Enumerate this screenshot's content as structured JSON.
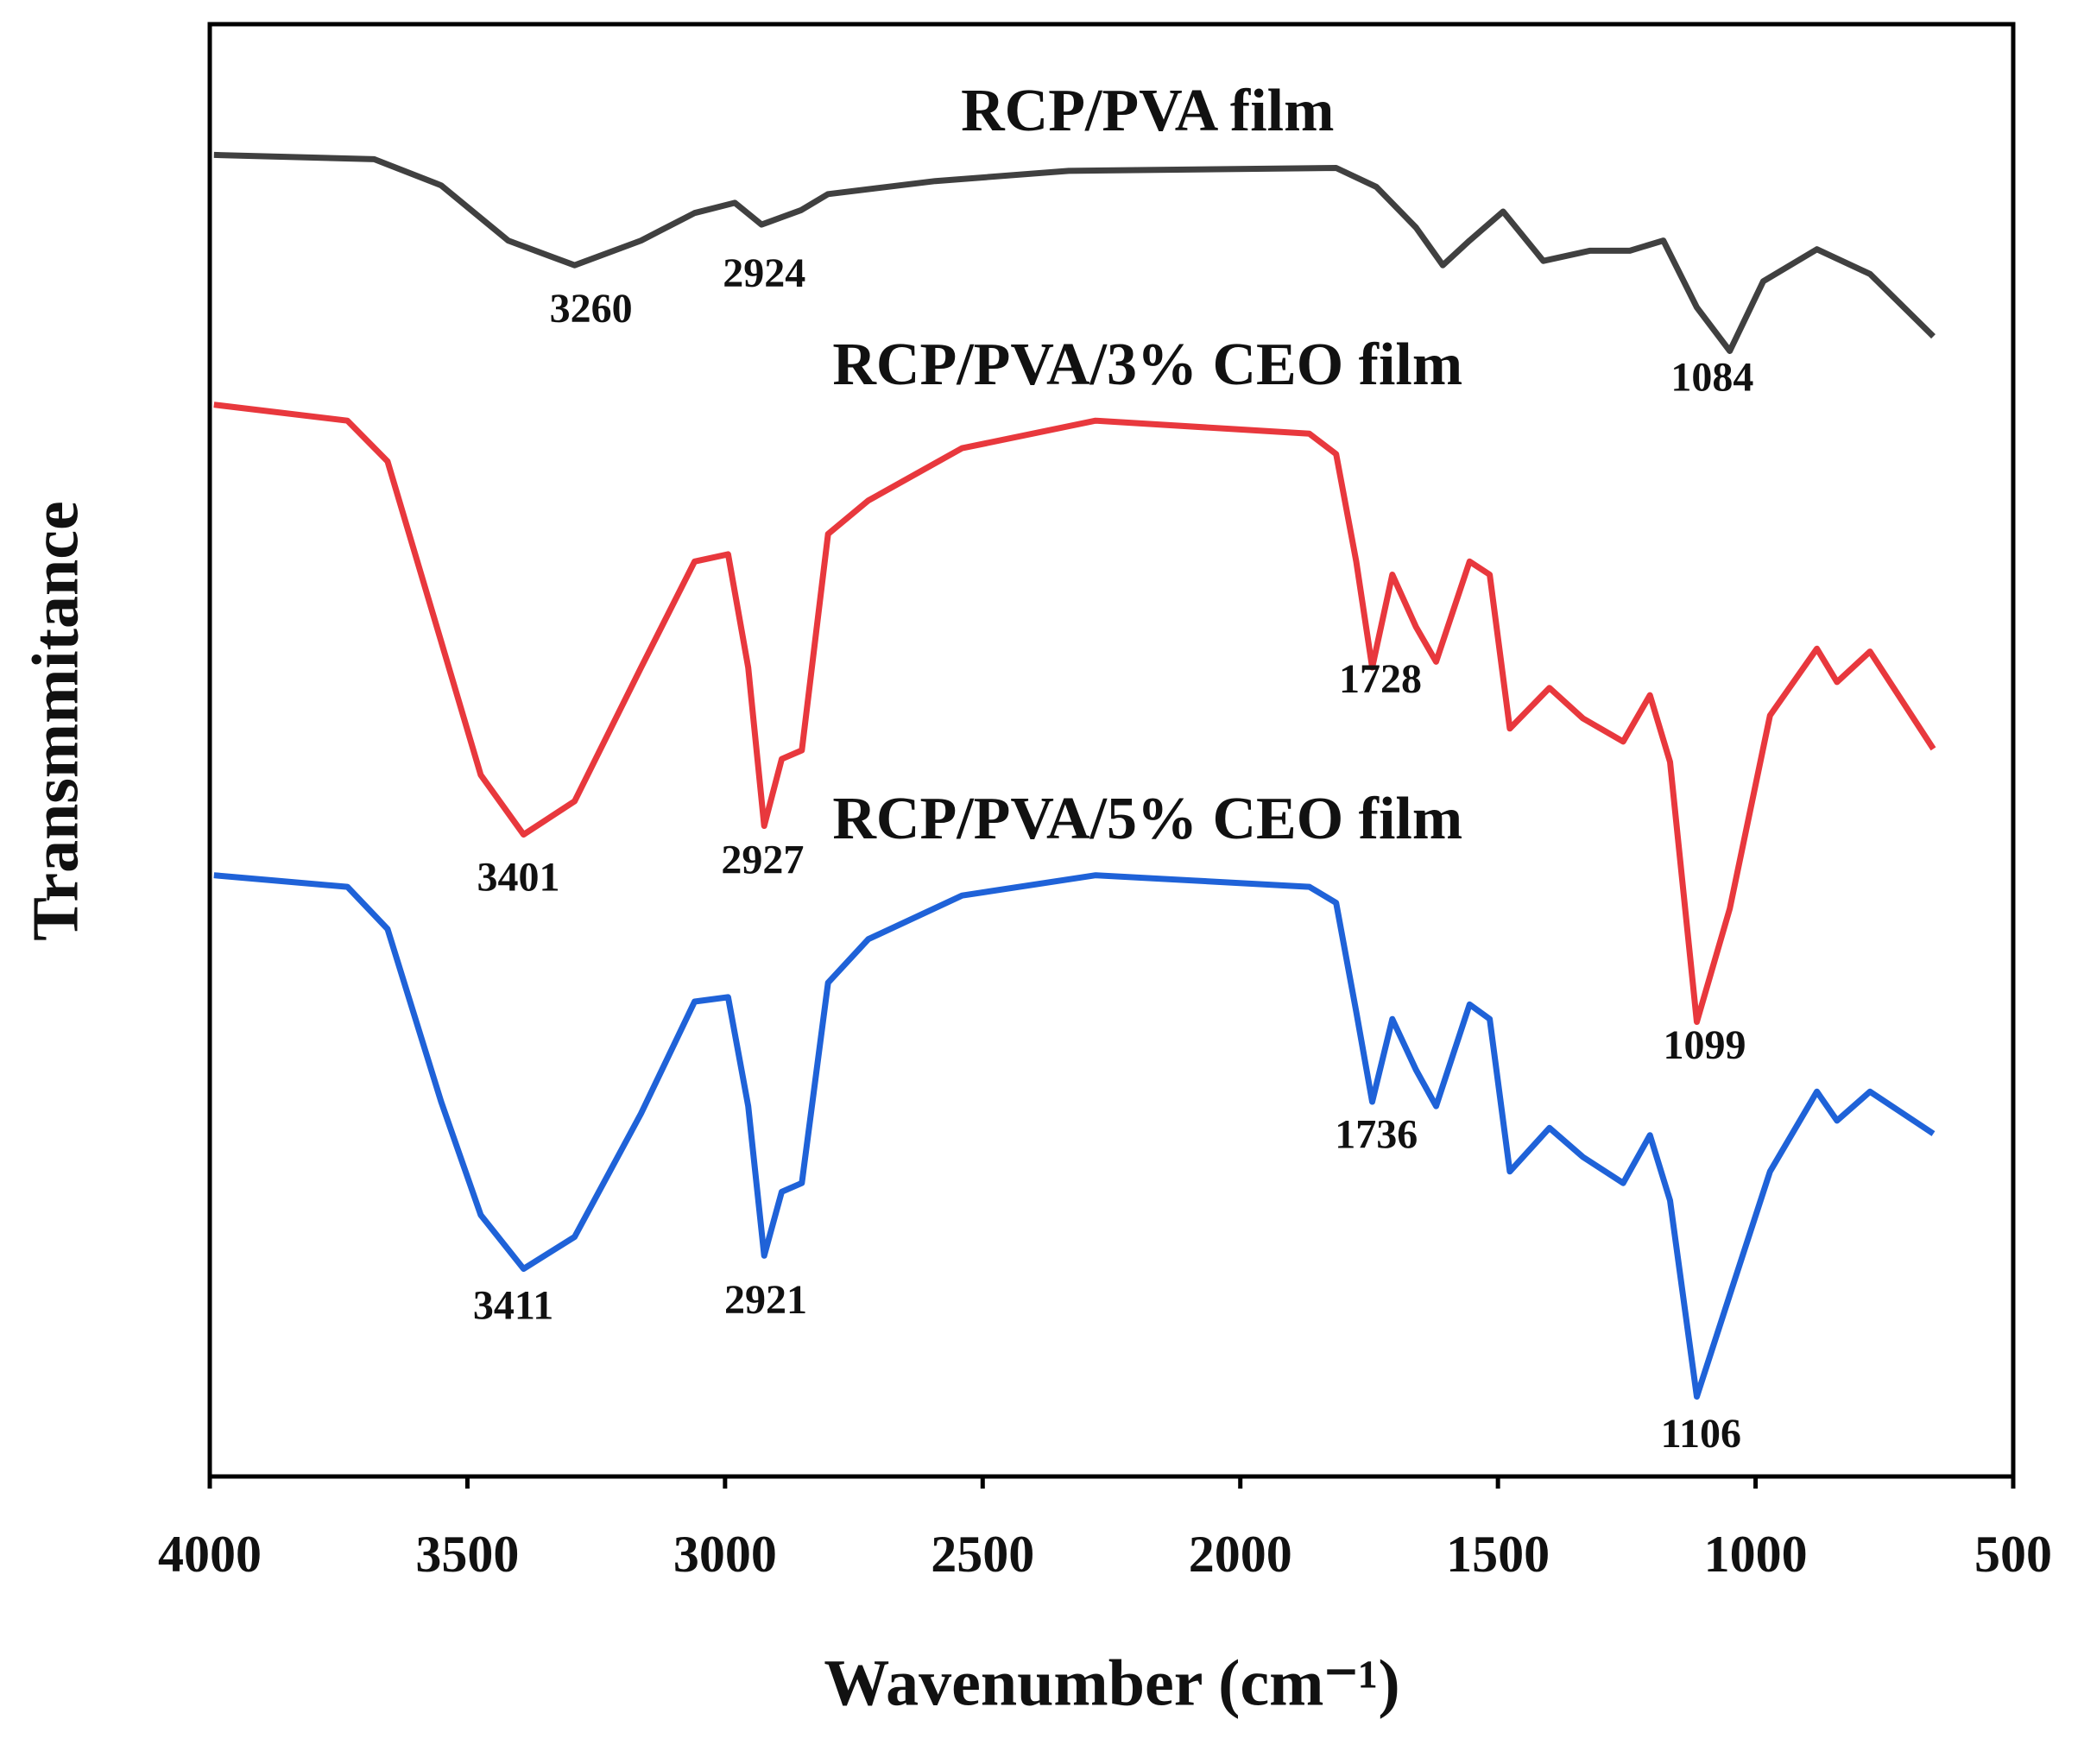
{
  "chart_data": {
    "type": "line",
    "x_label": "Wavenumber (cm⁻¹)",
    "y_label": "Transmmitance",
    "xlim": [
      4000,
      500
    ],
    "xticks": [
      4000,
      3500,
      3000,
      2500,
      2000,
      1500,
      1000,
      500
    ],
    "ylim": [
      0,
      100
    ],
    "series": [
      {
        "name": "RCP/PVA film",
        "color": "#404040",
        "x": [
          3992,
          3681,
          3551,
          3421,
          3292,
          3163,
          3059,
          2981,
          2929,
          2852,
          2800,
          2592,
          2333,
          1814,
          1736,
          1659,
          1607,
          1555,
          1490,
          1412,
          1322,
          1244,
          1179,
          1114,
          1050,
          985,
          881,
          778,
          655
        ],
        "values": [
          91.0,
          90.7,
          88.9,
          85.1,
          83.4,
          85.1,
          87.0,
          87.7,
          86.2,
          87.2,
          88.3,
          89.2,
          89.9,
          90.1,
          88.8,
          86.0,
          83.4,
          85.1,
          87.1,
          83.7,
          84.4,
          84.4,
          85.1,
          80.5,
          77.5,
          82.3,
          84.5,
          82.8,
          78.5
        ],
        "peaks": [
          3260,
          2924,
          1084
        ]
      },
      {
        "name": "RCP/PVA/3% CEO film",
        "color": "#e8383d",
        "x": [
          3992,
          3733,
          3655,
          3551,
          3474,
          3391,
          3292,
          3163,
          3059,
          2994,
          2955,
          2924,
          2890,
          2851,
          2800,
          2722,
          2540,
          2281,
          1866,
          1814,
          1775,
          1744,
          1705,
          1659,
          1620,
          1555,
          1516,
          1477,
          1400,
          1335,
          1257,
          1205,
          1166,
          1114,
          1050,
          972,
          881,
          842,
          778,
          655
        ],
        "values": [
          73.8,
          72.7,
          69.9,
          57.5,
          48.3,
          44.2,
          46.5,
          55.7,
          63.0,
          63.5,
          55.7,
          44.8,
          49.4,
          50.0,
          64.9,
          67.2,
          70.8,
          72.7,
          71.8,
          70.4,
          63.0,
          55.7,
          62.1,
          58.5,
          56.1,
          63.0,
          62.1,
          51.5,
          54.3,
          52.2,
          50.6,
          53.8,
          49.2,
          31.3,
          39.1,
          52.4,
          57.0,
          54.7,
          56.8,
          50.1
        ],
        "peaks": [
          3401,
          2927,
          1728,
          1099
        ]
      },
      {
        "name": "RCP/PVA/5% CEO film",
        "color": "#1f62d8",
        "x": [
          3992,
          3733,
          3655,
          3551,
          3474,
          3391,
          3292,
          3163,
          3059,
          2994,
          2955,
          2924,
          2890,
          2851,
          2800,
          2722,
          2540,
          2281,
          1866,
          1814,
          1775,
          1744,
          1705,
          1659,
          1620,
          1555,
          1516,
          1477,
          1400,
          1335,
          1257,
          1205,
          1166,
          1114,
          1050,
          972,
          881,
          842,
          778,
          655
        ],
        "values": [
          41.4,
          40.6,
          37.7,
          25.8,
          18.0,
          14.3,
          16.5,
          25.0,
          32.7,
          33.0,
          25.5,
          15.2,
          19.6,
          20.2,
          34.0,
          37.0,
          40.0,
          41.4,
          40.6,
          39.5,
          32.0,
          25.8,
          31.5,
          28.0,
          25.5,
          32.5,
          31.5,
          21.0,
          24.0,
          22.0,
          20.2,
          23.5,
          19.0,
          5.5,
          12.5,
          21.0,
          26.5,
          24.5,
          26.5,
          23.6
        ],
        "peaks": [
          3411,
          2921,
          1736,
          1106
        ]
      }
    ]
  }
}
